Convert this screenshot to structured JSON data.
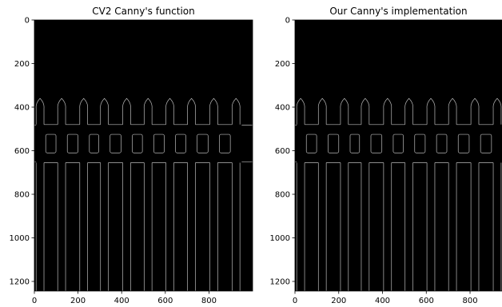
{
  "chart_data": [
    {
      "type": "image",
      "title": "CV2 Canny's function",
      "xlim": [
        0,
        1000
      ],
      "ylim": [
        1244,
        0
      ],
      "xticks": [
        0,
        200,
        400,
        600,
        800
      ],
      "yticks": [
        0,
        200,
        400,
        600,
        800,
        1000,
        1200
      ]
    },
    {
      "type": "image",
      "title": "Our Canny's implementation",
      "xlim": [
        0,
        946
      ],
      "ylim": [
        1244,
        0
      ],
      "xticks": [
        0,
        200,
        400,
        600,
        800
      ],
      "yticks": [
        0,
        200,
        400,
        600,
        800,
        1000,
        1200
      ]
    }
  ]
}
